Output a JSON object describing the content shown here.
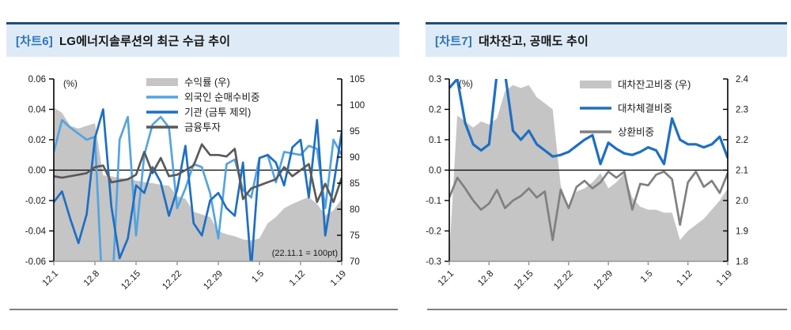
{
  "chart_data": [
    {
      "type": "combo",
      "title_tag": "[차트6]",
      "title": "LG에너지솔루션의 최근 수급 추이",
      "unit_label": "(%)",
      "note": "(22.11.1 = 100pt)",
      "x_tick_labels": [
        "12.1",
        "12.8",
        "12.15",
        "12.22",
        "12.29",
        "1.5",
        "1.12",
        "1.19"
      ],
      "x_tick_positions": [
        0,
        5,
        10,
        15,
        20,
        25,
        30,
        35
      ],
      "n_points": 36,
      "ylim_left": [
        -0.06,
        0.06
      ],
      "yticks_left": [
        "0.06",
        "0.04",
        "0.02",
        "0.00",
        "-0.02",
        "-0.04",
        "-0.06"
      ],
      "ylim_right": [
        70,
        105
      ],
      "yticks_right": [
        "105",
        "100",
        "95",
        "90",
        "85",
        "80",
        "75",
        "70"
      ],
      "legend_position": "top-center",
      "grid": false,
      "series": [
        {
          "name": "수익률 (우)",
          "type": "area",
          "axis": "right",
          "color": "#C5C5C5",
          "values": [
            99.5,
            98.5,
            96,
            95.5,
            96,
            96.5,
            86.5,
            86.3,
            86,
            85.8,
            85.5,
            85.2,
            85,
            84.7,
            84.5,
            82.5,
            82,
            79.5,
            79,
            78.5,
            75.8,
            75.2,
            74.8,
            74.2,
            74,
            74.4,
            77.3,
            78.5,
            80.2,
            81,
            81.7,
            82.3,
            81,
            78.8,
            79.8,
            82
          ]
        },
        {
          "name": "외국인 순매수비중",
          "type": "line",
          "axis": "left",
          "color": "#55A3E0",
          "values": [
            0.012,
            0.033,
            0.028,
            0.024,
            0.02,
            0.022,
            -0.09,
            -0.09,
            0.02,
            0.035,
            -0.043,
            0.01,
            0.03,
            0.035,
            0.028,
            -0.025,
            -0.012,
            0.004,
            0.002,
            -0.015,
            -0.045,
            0.004,
            0.007,
            -0.013,
            -0.018,
            0.008,
            0.01,
            -0.008,
            0.012,
            0.011,
            0.01,
            0.016,
            0.014,
            -0.025,
            0.02,
            0.01
          ]
        },
        {
          "name": "기관 (금투 제외)",
          "type": "line",
          "axis": "left",
          "color": "#1E6FC2",
          "values": [
            -0.021,
            -0.014,
            -0.032,
            -0.048,
            -0.029,
            0.021,
            0.04,
            -0.024,
            -0.058,
            -0.045,
            -0.01,
            -0.015,
            0.002,
            -0.008,
            -0.03,
            -0.013,
            0.016,
            -0.035,
            -0.043,
            -0.02,
            -0.015,
            -0.025,
            -0.03,
            0.005,
            -0.065,
            0.008,
            0.01,
            0.005,
            -0.01,
            0.015,
            0.02,
            -0.018,
            0.033,
            -0.043,
            -0.01,
            0.025
          ]
        },
        {
          "name": "금융투자",
          "type": "line",
          "axis": "left",
          "color": "#595959",
          "values": [
            -0.004,
            -0.005,
            -0.004,
            -0.003,
            -0.002,
            0.002,
            0.003,
            -0.008,
            -0.007,
            -0.006,
            -0.003,
            0.012,
            -0.002,
            0.008,
            -0.004,
            -0.003,
            0,
            0.003,
            0.017,
            0.01,
            0.01,
            0.009,
            0.014,
            -0.019,
            -0.012,
            -0.01,
            -0.008,
            -0.006,
            0.002,
            -0.004,
            0,
            0.004,
            -0.021,
            -0.009,
            -0.021,
            -0.005
          ]
        }
      ]
    },
    {
      "type": "combo",
      "title_tag": "[차트7]",
      "title": "대차잔고, 공매도 추이",
      "unit_label": "(%)",
      "note": "",
      "x_tick_labels": [
        "12.1",
        "12.8",
        "12.15",
        "12.22",
        "12.29",
        "1.5",
        "1.12",
        "1.19"
      ],
      "x_tick_positions": [
        0,
        5,
        10,
        15,
        20,
        25,
        30,
        35
      ],
      "n_points": 36,
      "ylim_left": [
        -0.3,
        0.3
      ],
      "yticks_left": [
        "0.3",
        "0.2",
        "0.1",
        "0.0",
        "-0.1",
        "-0.2",
        "-0.3"
      ],
      "ylim_right": [
        1.8,
        2.4
      ],
      "yticks_right": [
        "2.4",
        "2.3",
        "2.2",
        "2.1",
        "2.0",
        "1.9",
        "1.8"
      ],
      "legend_position": "top-center",
      "grid": false,
      "series": [
        {
          "name": "대차잔고비중 (우)",
          "type": "area",
          "axis": "right",
          "color": "#C5C5C5",
          "values": [
            1.82,
            2.28,
            2.26,
            2.24,
            2.26,
            2.25,
            2.27,
            2.36,
            2.38,
            2.37,
            2.38,
            2.34,
            2.32,
            2.3,
            2.05,
            1.98,
            2.03,
            2.04,
            2.06,
            2.09,
            2.04,
            2.06,
            2.09,
            2.01,
            1.98,
            1.97,
            1.97,
            1.96,
            1.96,
            1.87,
            1.9,
            1.92,
            1.94,
            1.97,
            2.0,
            2.04
          ]
        },
        {
          "name": "대차체결비중",
          "type": "line",
          "axis": "left",
          "color": "#1E6FC2",
          "values": [
            0.27,
            0.3,
            0.155,
            0.085,
            0.065,
            0.085,
            0.32,
            0.32,
            0.13,
            0.1,
            0.13,
            0.085,
            0.065,
            0.045,
            0.05,
            0.06,
            0.08,
            0.1,
            0.115,
            0.02,
            0.09,
            0.07,
            0.055,
            0.05,
            0.06,
            0.075,
            0.065,
            0.02,
            0.17,
            0.1,
            0.085,
            0.085,
            0.075,
            0.085,
            0.11,
            0.04
          ]
        },
        {
          "name": "상환비중",
          "type": "line",
          "axis": "left",
          "color": "#808080",
          "values": [
            -0.09,
            -0.025,
            -0.06,
            -0.1,
            -0.13,
            -0.11,
            -0.065,
            -0.125,
            -0.1,
            -0.085,
            -0.06,
            -0.09,
            -0.07,
            -0.23,
            -0.065,
            -0.125,
            -0.055,
            -0.035,
            -0.06,
            -0.04,
            -0.005,
            -0.025,
            -0.005,
            -0.13,
            -0.045,
            -0.05,
            -0.015,
            -0.005,
            -0.03,
            -0.18,
            -0.04,
            -0.005,
            -0.055,
            -0.035,
            -0.075,
            -0.01
          ]
        }
      ]
    }
  ],
  "colors": {
    "header_border": "#1F4E79",
    "header_background": "#DEEBF7",
    "header_tag_text": "#2E74B5",
    "axis_line": "#000000",
    "bottom_axis_line": "#969696",
    "divider": "#7f7f7f"
  }
}
